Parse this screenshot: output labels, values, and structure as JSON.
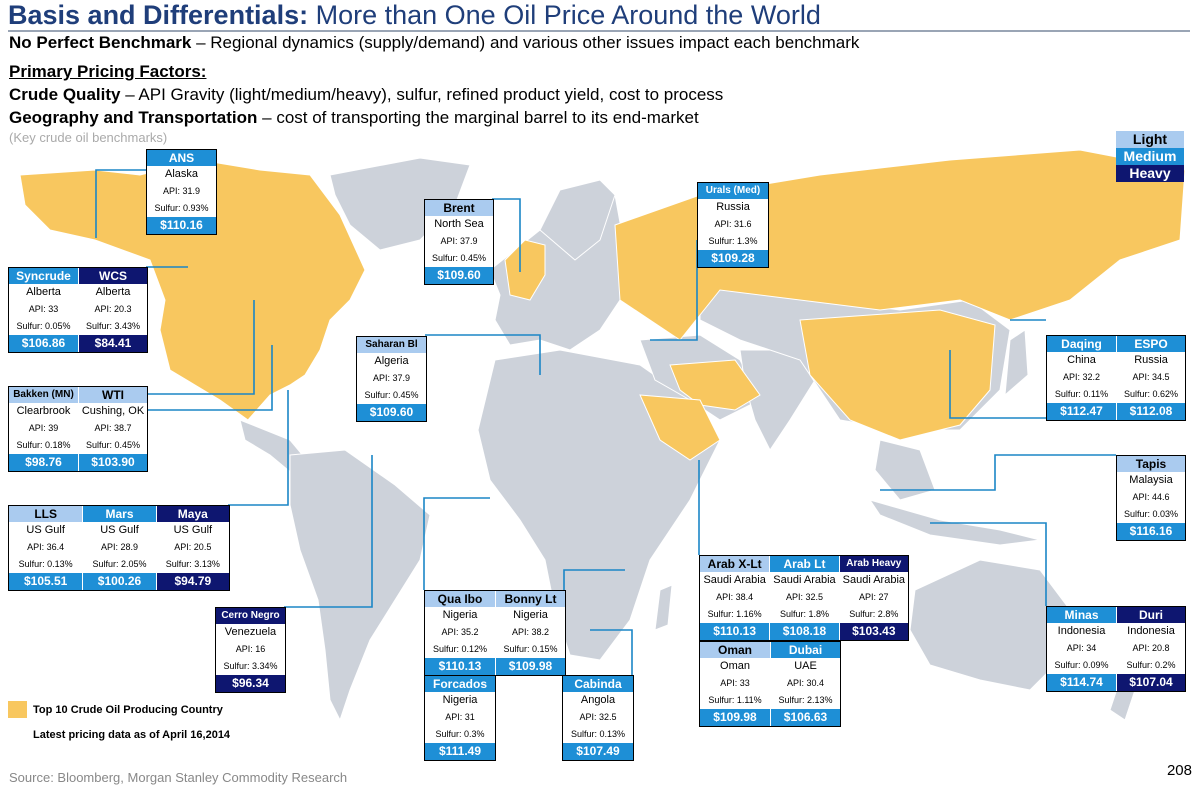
{
  "title": {
    "bold": "Basis and Differentials:",
    "rest": " More than One Oil Price Around the World"
  },
  "intro": {
    "benchmark_bold": "No Perfect Benchmark",
    "benchmark_text": " – Regional dynamics (supply/demand) and various other issues impact each benchmark",
    "factors_heading": "Primary Pricing Factors:",
    "quality_bold": "Crude Quality",
    "quality_text": " – API Gravity (light/medium/heavy), sulfur, refined product yield, cost to process",
    "geo_bold": "Geography and Transportation",
    "geo_text": " – cost of transporting the marginal barrel to its end-market",
    "map_caption": "(Key crude oil benchmarks)"
  },
  "legend": {
    "light": "Light",
    "medium": "Medium",
    "heavy": "Heavy"
  },
  "colors": {
    "light": "#aacbef",
    "medium": "#1e8fd6",
    "heavy": "#0e1670",
    "producer": "#f8c75f",
    "land": "#cdd2da",
    "title": "#1f3e7a"
  },
  "boxes": [
    {
      "id": "ans",
      "cols": [
        {
          "name": "ANS",
          "grade": "medium",
          "loc": "Alaska",
          "api": "API: 31.9",
          "sulfur": "Sulfur: 0.93%",
          "price": "$110.16"
        }
      ]
    },
    {
      "id": "brent",
      "cols": [
        {
          "name": "Brent",
          "grade": "light",
          "loc": "North Sea",
          "api": "API: 37.9",
          "sulfur": "Sulfur: 0.45%",
          "price": "$109.60"
        }
      ]
    },
    {
      "id": "urals",
      "cols": [
        {
          "name": "Urals (Med)",
          "grade": "medium",
          "loc": "Russia",
          "api": "API: 31.6",
          "sulfur": "Sulfur: 1.3%",
          "price": "$109.28"
        }
      ]
    },
    {
      "id": "syncrude",
      "cols": [
        {
          "name": "Syncrude",
          "grade": "medium",
          "loc": "Alberta",
          "api": "API: 33",
          "sulfur": "Sulfur: 0.05%",
          "price": "$106.86"
        },
        {
          "name": "WCS",
          "grade": "heavy",
          "loc": "Alberta",
          "api": "API: 20.3",
          "sulfur": "Sulfur: 3.43%",
          "price": "$84.41"
        }
      ]
    },
    {
      "id": "saharan",
      "cols": [
        {
          "name": "Saharan Bl",
          "grade": "light",
          "loc": "Algeria",
          "api": "API: 37.9",
          "sulfur": "Sulfur: 0.45%",
          "price": "$109.60"
        }
      ]
    },
    {
      "id": "daqing",
      "cols": [
        {
          "name": "Daqing",
          "grade": "medium",
          "loc": "China",
          "api": "API: 32.2",
          "sulfur": "Sulfur: 0.11%",
          "price": "$112.47"
        },
        {
          "name": "ESPO",
          "grade": "medium",
          "loc": "Russia",
          "api": "API: 34.5",
          "sulfur": "Sulfur: 0.62%",
          "price": "$112.08"
        }
      ]
    },
    {
      "id": "bakken",
      "cols": [
        {
          "name": "Bakken (MN)",
          "grade": "light",
          "loc": "Clearbrook",
          "api": "API: 39",
          "sulfur": "Sulfur: 0.18%",
          "price": "$98.76"
        },
        {
          "name": "WTI",
          "grade": "light",
          "loc": "Cushing, OK",
          "api": "API: 38.7",
          "sulfur": "Sulfur: 0.45%",
          "price": "$103.90"
        }
      ]
    },
    {
      "id": "tapis",
      "cols": [
        {
          "name": "Tapis",
          "grade": "light",
          "loc": "Malaysia",
          "api": "API: 44.6",
          "sulfur": "Sulfur: 0.03%",
          "price": "$116.16"
        }
      ]
    },
    {
      "id": "lls",
      "cols": [
        {
          "name": "LLS",
          "grade": "light",
          "loc": "US Gulf",
          "api": "API: 36.4",
          "sulfur": "Sulfur: 0.13%",
          "price": "$105.51"
        },
        {
          "name": "Mars",
          "grade": "medium",
          "loc": "US Gulf",
          "api": "API: 28.9",
          "sulfur": "Sulfur: 2.05%",
          "price": "$100.26"
        },
        {
          "name": "Maya",
          "grade": "heavy",
          "loc": "US Gulf",
          "api": "API: 20.5",
          "sulfur": "Sulfur: 3.13%",
          "price": "$94.79"
        }
      ]
    },
    {
      "id": "arab",
      "cols": [
        {
          "name": "Arab X-Lt",
          "grade": "light",
          "loc": "Saudi Arabia",
          "api": "API: 38.4",
          "sulfur": "Sulfur: 1.16%",
          "price": "$110.13"
        },
        {
          "name": "Arab Lt",
          "grade": "medium",
          "loc": "Saudi Arabia",
          "api": "API: 32.5",
          "sulfur": "Sulfur: 1.8%",
          "price": "$108.18"
        },
        {
          "name": "Arab Heavy",
          "grade": "heavy",
          "loc": "Saudi Arabia",
          "api": "API: 27",
          "sulfur": "Sulfur: 2.8%",
          "price": "$103.43"
        }
      ]
    },
    {
      "id": "quaibo",
      "cols": [
        {
          "name": "Qua Ibo",
          "grade": "light",
          "loc": "Nigeria",
          "api": "API: 35.2",
          "sulfur": "Sulfur: 0.12%",
          "price": "$110.13"
        },
        {
          "name": "Bonny Lt",
          "grade": "light",
          "loc": "Nigeria",
          "api": "API: 38.2",
          "sulfur": "Sulfur: 0.15%",
          "price": "$109.98"
        }
      ]
    },
    {
      "id": "cerronegro",
      "cols": [
        {
          "name": "Cerro Negro",
          "grade": "heavy",
          "loc": "Venezuela",
          "api": "API: 16",
          "sulfur": "Sulfur: 3.34%",
          "price": "$96.34"
        }
      ]
    },
    {
      "id": "minas",
      "cols": [
        {
          "name": "Minas",
          "grade": "medium",
          "loc": "Indonesia",
          "api": "API: 34",
          "sulfur": "Sulfur: 0.09%",
          "price": "$114.74"
        },
        {
          "name": "Duri",
          "grade": "heavy",
          "loc": "Indonesia",
          "api": "API: 20.8",
          "sulfur": "Sulfur: 0.2%",
          "price": "$107.04"
        }
      ]
    },
    {
      "id": "oman",
      "cols": [
        {
          "name": "Oman",
          "grade": "light",
          "loc": "Oman",
          "api": "API: 33",
          "sulfur": "Sulfur: 1.11%",
          "price": "$109.98"
        },
        {
          "name": "Dubai",
          "grade": "medium",
          "loc": "UAE",
          "api": "API: 30.4",
          "sulfur": "Sulfur: 2.13%",
          "price": "$106.63"
        }
      ]
    },
    {
      "id": "forcados",
      "cols": [
        {
          "name": "Forcados",
          "grade": "medium",
          "loc": "Nigeria",
          "api": "API: 31",
          "sulfur": "Sulfur: 0.3%",
          "price": "$111.49"
        }
      ]
    },
    {
      "id": "cabinda",
      "cols": [
        {
          "name": "Cabinda",
          "grade": "medium",
          "loc": "Angola",
          "api": "API: 32.5",
          "sulfur": "Sulfur: 0.13%",
          "price": "$107.49"
        }
      ]
    }
  ],
  "footer": {
    "legend_label": "Top 10 Crude Oil Producing Country",
    "pricing_note": "Latest pricing data as of April 16,2014",
    "source": "Source: Bloomberg, Morgan Stanley Commodity Research",
    "page_number": "208"
  }
}
